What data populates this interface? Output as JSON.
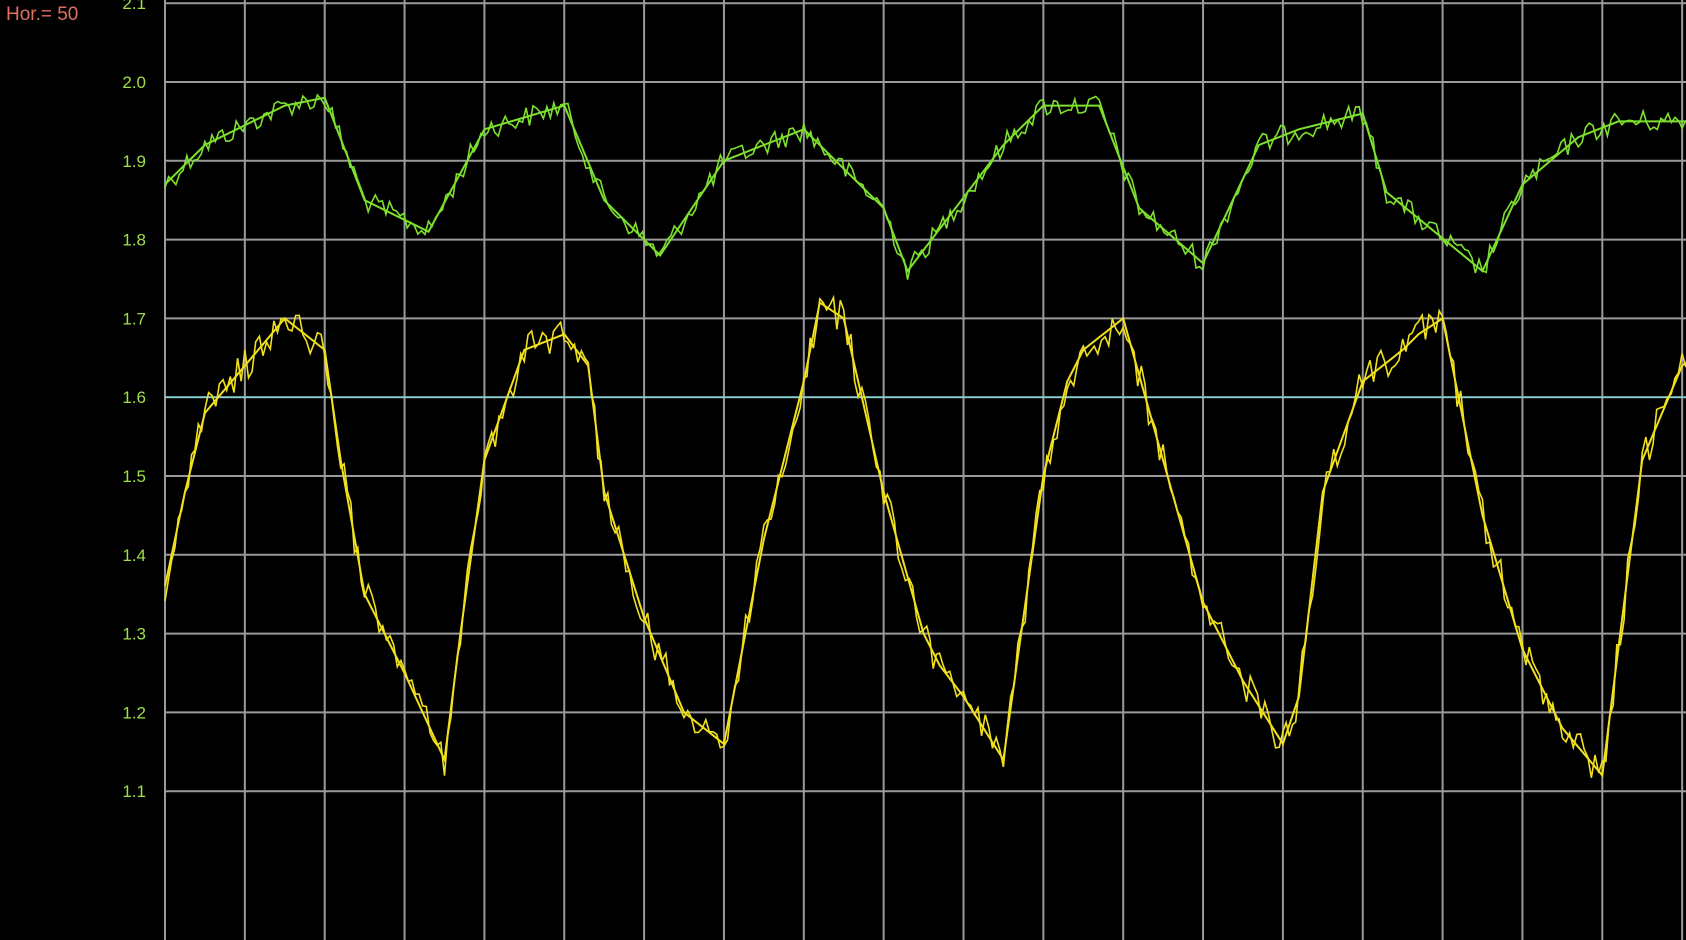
{
  "hor_readout": {
    "label": "Hor.=",
    "value": "50"
  },
  "colors": {
    "background": "#000000",
    "grid": "#9a9a9a",
    "tick_label": "#9fe04a",
    "reference_line": "#7fd0d0",
    "hor_readout": "#e07060"
  },
  "chart_data": {
    "type": "line",
    "title": "",
    "xlabel": "",
    "ylabel": "",
    "y_ticks": [
      "2.1",
      "2.0",
      "1.9",
      "1.8",
      "1.7",
      "1.6",
      "1.5",
      "1.4",
      "1.3",
      "1.2",
      "1.1"
    ],
    "ylim": [
      1.0,
      2.2
    ],
    "grid": true,
    "x_divisions": 20,
    "reference_line": {
      "y": 1.6
    },
    "series": [
      {
        "color": "#7ee02e",
        "x": [
          0,
          0.5,
          1.5,
          2.0,
          2.5,
          3.3,
          4.0,
          5.0,
          5.5,
          6.2,
          7.0,
          7.5,
          8.0,
          9.0,
          9.3,
          10.5,
          11.0,
          11.7,
          12.2,
          13.0,
          13.7,
          14.2,
          15.0,
          15.3,
          16.5,
          17.0,
          17.7,
          18.2,
          19.0,
          20.0
        ],
        "y": [
          1.87,
          1.92,
          1.97,
          1.98,
          1.85,
          1.81,
          1.94,
          1.97,
          1.85,
          1.78,
          1.9,
          1.92,
          1.94,
          1.84,
          1.76,
          1.92,
          1.97,
          1.97,
          1.84,
          1.77,
          1.92,
          1.94,
          1.96,
          1.86,
          1.76,
          1.87,
          1.93,
          1.95,
          1.95,
          1.95
        ]
      },
      {
        "color": "#f0e020",
        "x": [
          0,
          0.25,
          0.5,
          1.0,
          1.5,
          2.0,
          2.2,
          2.5,
          3.0,
          3.5,
          3.7,
          4.0,
          4.5,
          5.0,
          5.3,
          5.5,
          6.0,
          6.5,
          7.0,
          7.5,
          8.0,
          8.2,
          8.5,
          9.0,
          9.5,
          9.7,
          10.0,
          10.5,
          11.0,
          11.3,
          11.5,
          12.0,
          12.5,
          13.0,
          13.5,
          14.0,
          14.2,
          14.5,
          15.0,
          15.5,
          15.7,
          16.0,
          16.5,
          17.0,
          17.3,
          17.5,
          18.0,
          18.5,
          19.0,
          19.5,
          20.0
        ],
        "y": [
          1.36,
          1.48,
          1.58,
          1.64,
          1.7,
          1.66,
          1.52,
          1.35,
          1.25,
          1.14,
          1.3,
          1.52,
          1.66,
          1.68,
          1.64,
          1.48,
          1.32,
          1.2,
          1.16,
          1.42,
          1.62,
          1.72,
          1.7,
          1.48,
          1.3,
          1.26,
          1.22,
          1.14,
          1.5,
          1.62,
          1.66,
          1.7,
          1.52,
          1.34,
          1.24,
          1.16,
          1.22,
          1.48,
          1.62,
          1.66,
          1.68,
          1.7,
          1.45,
          1.28,
          1.22,
          1.18,
          1.12,
          1.52,
          1.64,
          1.68,
          1.7
        ]
      }
    ]
  }
}
